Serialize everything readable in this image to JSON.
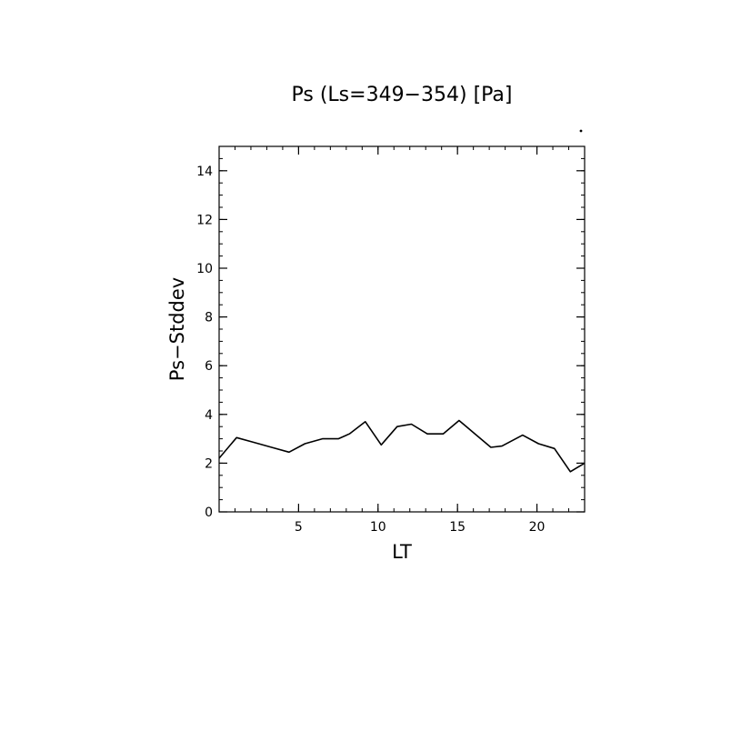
{
  "chart_data": {
    "type": "line",
    "title": "Ps (Ls=349−354) [Pa]",
    "xlabel": "LT",
    "ylabel": "Ps−Stddev",
    "xlim": [
      0,
      23
    ],
    "ylim": [
      0,
      15
    ],
    "x_ticks": [
      5,
      10,
      15,
      20
    ],
    "y_ticks": [
      0,
      2,
      4,
      6,
      8,
      10,
      12,
      14
    ],
    "grid": false,
    "legend": "none",
    "line_color": "#000000",
    "series": [
      {
        "x": [
          0,
          1.1,
          2.2,
          3.3,
          4.4,
          5.4,
          6.5,
          7.5,
          8.2,
          9.2,
          10.2,
          11.2,
          12.1,
          13.1,
          14.1,
          15.1,
          16.1,
          17.1,
          17.8,
          19.1,
          20.1,
          21.1,
          22.1,
          23
        ],
        "y": [
          2.2,
          3.05,
          2.85,
          2.65,
          2.45,
          2.8,
          3.0,
          3.0,
          3.2,
          3.7,
          2.75,
          3.5,
          3.6,
          3.2,
          3.2,
          3.75,
          3.2,
          2.65,
          2.7,
          3.15,
          2.8,
          2.6,
          1.65,
          2.0
        ]
      }
    ]
  }
}
